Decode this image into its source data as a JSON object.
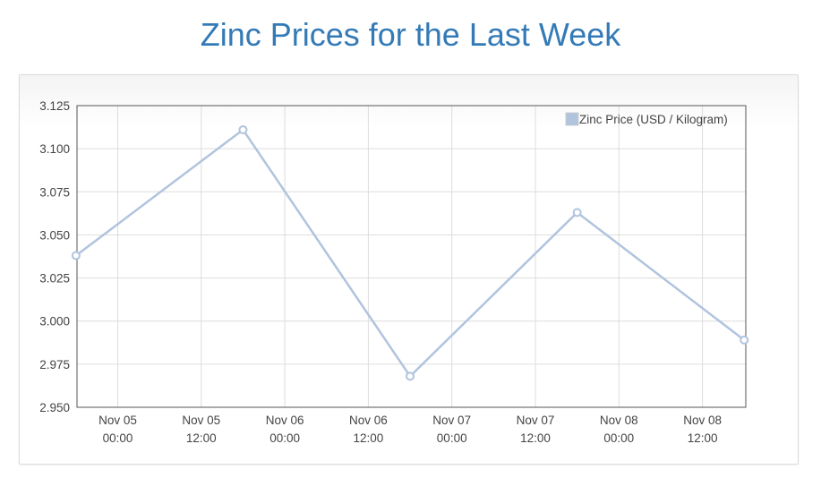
{
  "page": {
    "title": "Zinc Prices for the Last Week"
  },
  "colors": {
    "title": "#337ab7",
    "series": "#b0c4de",
    "grid": "#dddddd",
    "axis": "#555555"
  },
  "chart_data": {
    "type": "line",
    "title": "Zinc Prices for the Last Week",
    "xlabel": "",
    "ylabel": "",
    "ylim": [
      2.95,
      3.125
    ],
    "yticks": [
      "3.125",
      "3.100",
      "3.075",
      "3.050",
      "3.025",
      "3.000",
      "2.975",
      "2.950"
    ],
    "xticks": [
      [
        "Nov 05",
        "00:00"
      ],
      [
        "Nov 05",
        "12:00"
      ],
      [
        "Nov 06",
        "00:00"
      ],
      [
        "Nov 06",
        "12:00"
      ],
      [
        "Nov 07",
        "00:00"
      ],
      [
        "Nov 07",
        "12:00"
      ],
      [
        "Nov 08",
        "00:00"
      ],
      [
        "Nov 08",
        "12:00"
      ]
    ],
    "grid": true,
    "legend_position": "top-right",
    "series": [
      {
        "name": "Zinc Price (USD / Kilogram)",
        "points": [
          {
            "x": "Nov 04 18:00",
            "y": 3.038
          },
          {
            "x": "Nov 05 18:00",
            "y": 3.111
          },
          {
            "x": "Nov 06 18:00",
            "y": 2.968
          },
          {
            "x": "Nov 07 18:00",
            "y": 3.063
          },
          {
            "x": "Nov 08 18:00",
            "y": 2.989
          }
        ]
      }
    ]
  }
}
